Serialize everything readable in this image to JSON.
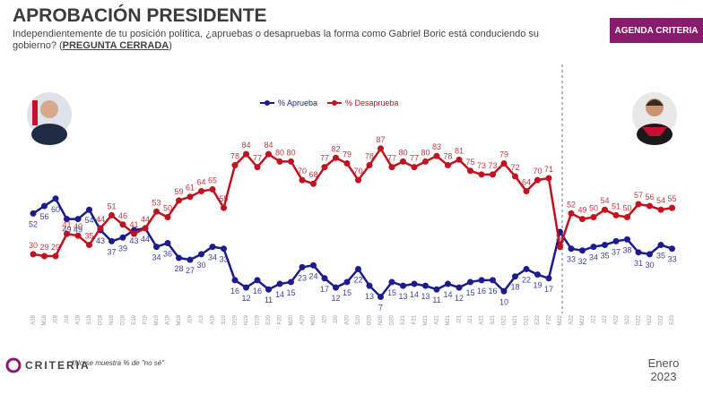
{
  "header": {
    "title": "APROBACIÓN PRESIDENTE",
    "subtitle": "Independientemente de tu posición política, ¿apruebas o desapruebas la forma como Gabriel Boric está conduciendo su gobierno? (",
    "subtitle_emphasis": "PREGUNTA CERRADA",
    "subtitle_end": ")",
    "badge": "AGENDA CRITERIA"
  },
  "chart_data": {
    "type": "line",
    "ylim": [
      0,
      100
    ],
    "categories": [
      "A18",
      "M18",
      "J18",
      "J18",
      "A18",
      "S18",
      "O18",
      "N18",
      "D18",
      "E19",
      "F19",
      "M19",
      "A19",
      "M19",
      "J19",
      "J19",
      "A19",
      "S19",
      "O19",
      "N19",
      "D19",
      "E20",
      "F20",
      "M20",
      "A20",
      "M20",
      "J20",
      "J20",
      "A20",
      "S20",
      "O20",
      "N20",
      "D20",
      "E21",
      "F21",
      "M21",
      "A21",
      "M21",
      "J21",
      "J21",
      "A21",
      "S21",
      "O21",
      "N21",
      "D21",
      "E22",
      "F22",
      "M22",
      "A22",
      "M22",
      "J22",
      "J22",
      "A22",
      "S22",
      "O22",
      "N22",
      "D22",
      "E23"
    ],
    "series": [
      {
        "name": "% Aprueba",
        "color": "#1c1c8e",
        "values": [
          52,
          56,
          60,
          49,
          49,
          54,
          43,
          37,
          39,
          43,
          44,
          34,
          36,
          28,
          27,
          30,
          34,
          33,
          16,
          12,
          16,
          11,
          14,
          15,
          23,
          24,
          17,
          12,
          15,
          22,
          13,
          7,
          15,
          13,
          14,
          13,
          11,
          14,
          12,
          15,
          16,
          16,
          10,
          18,
          22,
          19,
          17,
          42,
          33,
          32,
          34,
          35,
          37,
          38,
          31,
          30,
          35,
          33
        ]
      },
      {
        "name": "% Desaprueba",
        "color": "#c1121f",
        "values": [
          30,
          29,
          29,
          41,
          40,
          35,
          44,
          51,
          46,
          41,
          44,
          53,
          50,
          59,
          61,
          64,
          65,
          55,
          78,
          84,
          77,
          84,
          80,
          80,
          70,
          68,
          77,
          82,
          79,
          70,
          78,
          87,
          77,
          80,
          77,
          80,
          83,
          78,
          81,
          75,
          73,
          73,
          79,
          72,
          64,
          70,
          71,
          34,
          52,
          49,
          50,
          54,
          51,
          50,
          57,
          56,
          54,
          55
        ]
      }
    ]
  },
  "footer": {
    "brand": "CRITERIA",
    "note": "*No se muestra % de \"no sé\"",
    "month": "Enero",
    "year": "2023"
  }
}
